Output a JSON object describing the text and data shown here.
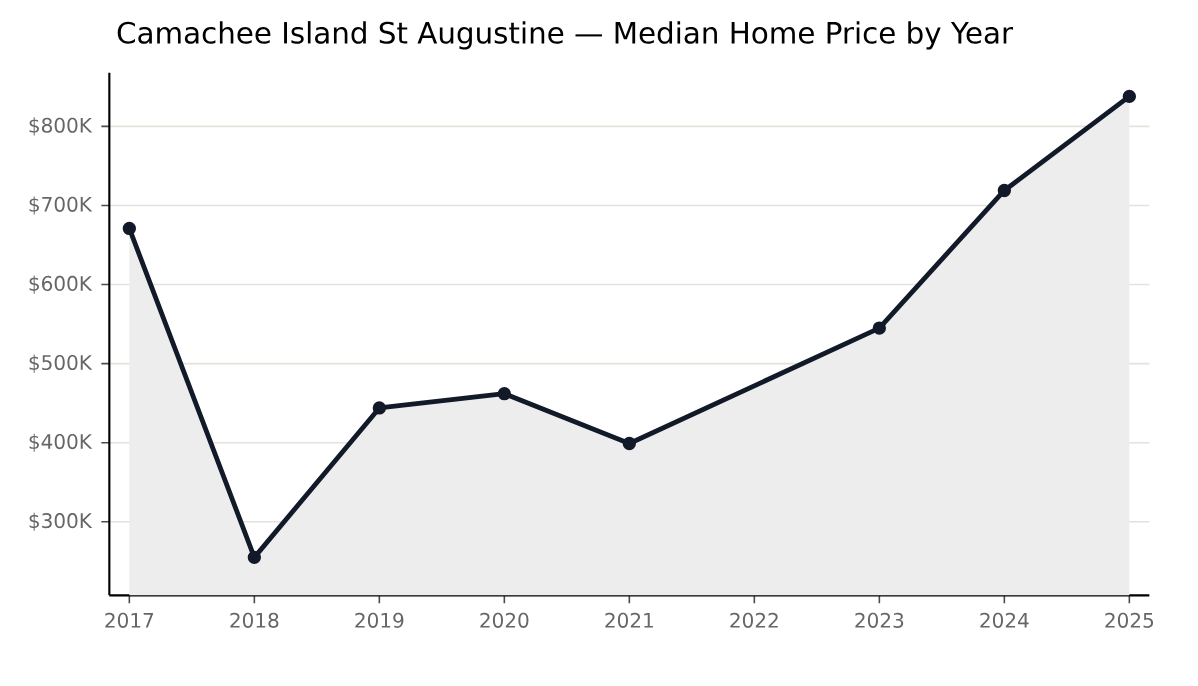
{
  "chart_data": {
    "type": "area",
    "title": "Camachee Island St Augustine — Median Home Price by Year",
    "x": [
      2017,
      2018,
      2019,
      2020,
      2021,
      2023,
      2024,
      2025
    ],
    "values": [
      671000,
      255000,
      444000,
      462000,
      399000,
      545000,
      719000,
      838000
    ],
    "color": "#121a2a",
    "marker": "circle",
    "grid": "y",
    "xlim": [
      2016.84,
      2025.16
    ],
    "ylim": [
      207000,
      868000
    ],
    "xticks": [
      2017,
      2018,
      2019,
      2020,
      2021,
      2022,
      2023,
      2024,
      2025
    ],
    "yticks": [
      {
        "value": 300000,
        "label": "$300K"
      },
      {
        "value": 400000,
        "label": "$400K"
      },
      {
        "value": 500000,
        "label": "$500K"
      },
      {
        "value": 600000,
        "label": "$600K"
      },
      {
        "value": 700000,
        "label": "$700K"
      },
      {
        "value": 800000,
        "label": "$800K"
      }
    ]
  }
}
